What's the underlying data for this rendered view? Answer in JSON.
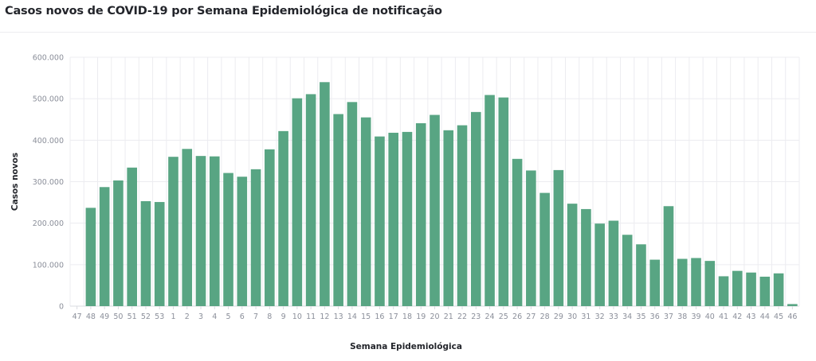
{
  "page": {
    "title": "Casos novos de COVID-19 por Semana Epidemiológica de notificação"
  },
  "chart_data": {
    "type": "bar",
    "title": "Casos novos de COVID-19 por Semana Epidemiológica de notificação",
    "xlabel": "Semana Epidemiológica",
    "ylabel": "Casos novos",
    "ylim": [
      0,
      600000
    ],
    "y_ticks": [
      0,
      100000,
      200000,
      300000,
      400000,
      500000,
      600000
    ],
    "y_tick_labels": [
      "0",
      "100.000",
      "200.000",
      "300.000",
      "400.000",
      "500.000",
      "600.000"
    ],
    "categories": [
      "47",
      "48",
      "49",
      "50",
      "51",
      "52",
      "53",
      "1",
      "2",
      "3",
      "4",
      "5",
      "6",
      "7",
      "8",
      "9",
      "10",
      "11",
      "12",
      "13",
      "14",
      "15",
      "16",
      "17",
      "18",
      "19",
      "20",
      "21",
      "22",
      "23",
      "24",
      "25",
      "26",
      "27",
      "28",
      "29",
      "30",
      "31",
      "32",
      "33",
      "34",
      "35",
      "36",
      "37",
      "38",
      "39",
      "40",
      "41",
      "42",
      "43",
      "44",
      "45",
      "46"
    ],
    "values": [
      0,
      237000,
      287000,
      303000,
      334000,
      253000,
      251000,
      360000,
      379000,
      362000,
      361000,
      321000,
      312000,
      330000,
      378000,
      422000,
      501000,
      511000,
      540000,
      463000,
      492000,
      455000,
      409000,
      418000,
      420000,
      441000,
      461000,
      424000,
      436000,
      468000,
      509000,
      503000,
      355000,
      327000,
      273000,
      328000,
      247000,
      234000,
      199000,
      206000,
      172000,
      149000,
      112000,
      241000,
      114000,
      116000,
      109000,
      72000,
      85000,
      81000,
      71000,
      79000,
      5000
    ],
    "colors": {
      "bar": "#58a583",
      "grid": "#ececf0",
      "tick": "#8b8f9a",
      "title": "#23252b"
    },
    "grid": true
  }
}
